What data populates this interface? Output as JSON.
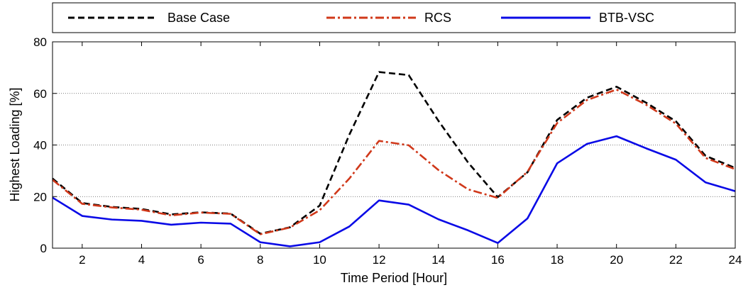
{
  "chart_data": {
    "type": "line",
    "xlabel": "Time Period [Hour]",
    "ylabel": "Highest Loading [%]",
    "xlim": [
      1,
      24
    ],
    "ylim": [
      0,
      80
    ],
    "xticks": [
      2,
      4,
      6,
      8,
      10,
      12,
      14,
      16,
      18,
      20,
      22,
      24
    ],
    "yticks": [
      0,
      20,
      40,
      60,
      80
    ],
    "grid": "y-major dotted",
    "legend": "top, horizontal, outside plot",
    "x": [
      1,
      2,
      3,
      4,
      5,
      6,
      7,
      8,
      9,
      10,
      11,
      12,
      13,
      14,
      15,
      16,
      17,
      18,
      19,
      20,
      21,
      22,
      23,
      24
    ],
    "series": [
      {
        "name": "Base Case",
        "color": "#000000",
        "style": "dashed",
        "values": [
          27,
          17.5,
          16,
          15.2,
          13.1,
          13.9,
          13.4,
          5.6,
          8.1,
          16.5,
          44,
          68.3,
          67.1,
          49.4,
          33.2,
          19.8,
          29.4,
          49.7,
          58.3,
          62.6,
          56.4,
          49.2,
          35.8,
          31.1
        ]
      },
      {
        "name": "RCS",
        "color": "#d0381a",
        "style": "dashdot",
        "values": [
          26.5,
          17.2,
          15.8,
          14.9,
          12.7,
          13.8,
          13.3,
          5.4,
          8,
          14.7,
          27,
          41.6,
          39.9,
          30.3,
          22.8,
          19.5,
          29.6,
          48.5,
          57.4,
          61.5,
          55.6,
          48.3,
          35,
          30.6
        ]
      },
      {
        "name": "BTB-VSC",
        "color": "#0a0ae6",
        "style": "solid",
        "values": [
          19.6,
          12.5,
          11.1,
          10.6,
          9.1,
          9.9,
          9.5,
          2.3,
          0.7,
          2.3,
          8.4,
          18.5,
          16.9,
          11.2,
          6.9,
          2,
          11.5,
          32.9,
          40.4,
          43.4,
          38.7,
          34.3,
          25.5,
          22.1
        ]
      }
    ]
  }
}
